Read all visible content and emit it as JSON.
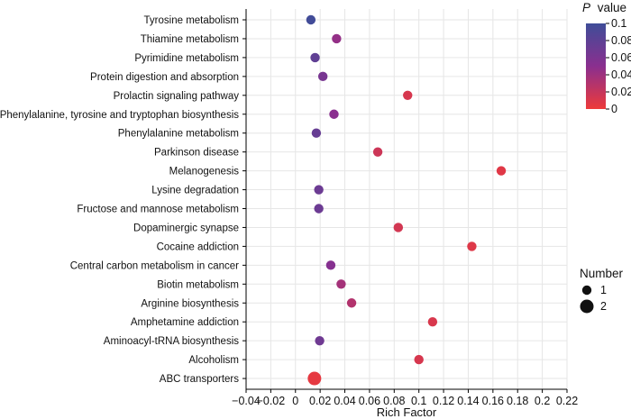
{
  "chart_data": {
    "type": "scatter",
    "title": "",
    "xlabel": "Rich Factor",
    "ylabel": "",
    "xlim": [
      -0.04,
      0.22
    ],
    "xticks": [
      -0.04,
      -0.02,
      0,
      0.02,
      0.04,
      0.06,
      0.08,
      0.1,
      0.12,
      0.14,
      0.16,
      0.18,
      0.2,
      0.22
    ],
    "xtick_labels": [
      "−0.04",
      "−0.02",
      "0",
      "0.02",
      "0.04",
      "0.06",
      "0.08",
      "0.1",
      "0.12",
      "0.14",
      "0.16",
      "0.18",
      "0.2",
      "0.22"
    ],
    "grid": true,
    "categories": [
      "Tyrosine metabolism",
      "Thiamine metabolism",
      "Pyrimidine metabolism",
      "Protein digestion and absorption",
      "Prolactin signaling pathway",
      "Phenylalanine, tyrosine and tryptophan biosynthesis",
      "Phenylalanine metabolism",
      "Parkinson disease",
      "Melanogenesis",
      "Lysine degradation",
      "Fructose and mannose metabolism",
      "Dopaminergic synapse",
      "Cocaine addiction",
      "Central carbon metabolism in cancer",
      "Biotin metabolism",
      "Arginine biosynthesis",
      "Amphetamine addiction",
      "Aminoacyl-tRNA biosynthesis",
      "Alcoholism",
      "ABC transporters"
    ],
    "points": [
      {
        "category": "Tyrosine metabolism",
        "x": 0.0125,
        "p_value": 0.098,
        "number": 1
      },
      {
        "category": "Thiamine metabolism",
        "x": 0.0333,
        "p_value": 0.045,
        "number": 1
      },
      {
        "category": "Pyrimidine metabolism",
        "x": 0.0159,
        "p_value": 0.078,
        "number": 1
      },
      {
        "category": "Protein digestion and absorption",
        "x": 0.0222,
        "p_value": 0.062,
        "number": 1
      },
      {
        "category": "Prolactin signaling pathway",
        "x": 0.0909,
        "p_value": 0.012,
        "number": 1
      },
      {
        "category": "Phenylalanine, tyrosine and tryptophan biosynthesis",
        "x": 0.0312,
        "p_value": 0.05,
        "number": 1
      },
      {
        "category": "Phenylalanine metabolism",
        "x": 0.0169,
        "p_value": 0.074,
        "number": 1
      },
      {
        "category": "Parkinson disease",
        "x": 0.0667,
        "p_value": 0.017,
        "number": 1
      },
      {
        "category": "Melanogenesis",
        "x": 0.1667,
        "p_value": 0.007,
        "number": 1
      },
      {
        "category": "Lysine degradation",
        "x": 0.0189,
        "p_value": 0.07,
        "number": 1
      },
      {
        "category": "Fructose and mannose metabolism",
        "x": 0.0189,
        "p_value": 0.07,
        "number": 1
      },
      {
        "category": "Dopaminergic synapse",
        "x": 0.0833,
        "p_value": 0.014,
        "number": 1
      },
      {
        "category": "Cocaine addiction",
        "x": 0.1429,
        "p_value": 0.008,
        "number": 1
      },
      {
        "category": "Central carbon metabolism in cancer",
        "x": 0.0286,
        "p_value": 0.053,
        "number": 1
      },
      {
        "category": "Biotin metabolism",
        "x": 0.037,
        "p_value": 0.037,
        "number": 1
      },
      {
        "category": "Arginine biosynthesis",
        "x": 0.0455,
        "p_value": 0.03,
        "number": 1
      },
      {
        "category": "Amphetamine addiction",
        "x": 0.1111,
        "p_value": 0.011,
        "number": 1
      },
      {
        "category": "Aminoacyl-tRNA biosynthesis",
        "x": 0.0196,
        "p_value": 0.068,
        "number": 1
      },
      {
        "category": "Alcoholism",
        "x": 0.1,
        "p_value": 0.012,
        "number": 1
      },
      {
        "category": "ABC transporters",
        "x": 0.0154,
        "p_value": 0.004,
        "number": 2
      }
    ],
    "color_legend": {
      "title_italic": "P",
      "title_rest": "value",
      "range": [
        0,
        0.1
      ],
      "ticks": [
        0.1,
        0.08,
        0.06,
        0.04,
        0.02,
        0
      ],
      "tick_labels": [
        "0.1",
        "0.08",
        "0.06",
        "0.04",
        "0.02",
        "0"
      ],
      "color_low": "#ee3a3a",
      "color_mid": "#8a2f8f",
      "color_high": "#3f4d98"
    },
    "size_legend": {
      "title": "Number",
      "entries": [
        {
          "label": "1",
          "number": 1
        },
        {
          "label": "2",
          "number": 2
        }
      ],
      "marker_color": "#111111"
    }
  }
}
